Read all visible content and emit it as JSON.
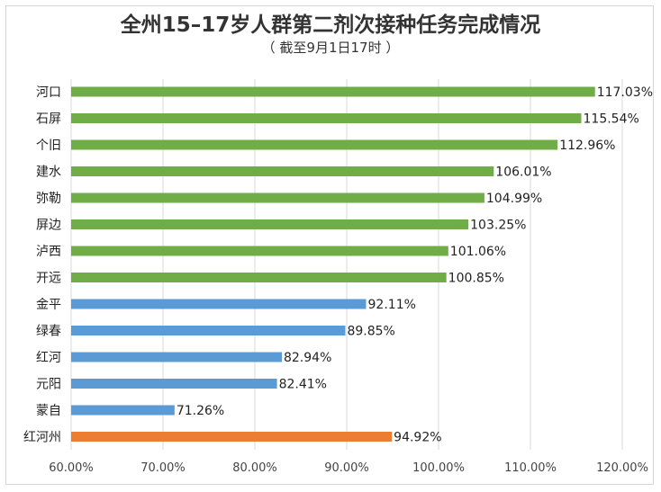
{
  "chart_data": {
    "type": "bar",
    "orientation": "horizontal",
    "title": "全州15–17岁人群第二剂次接种任务完成情况",
    "subtitle": "（ 截至9月1日17时 ）",
    "categories": [
      "河口",
      "石屏",
      "个旧",
      "建水",
      "弥勒",
      "屏边",
      "泸西",
      "开远",
      "金平",
      "绿春",
      "红河",
      "元阳",
      "蒙自",
      "红河州"
    ],
    "values": [
      117.03,
      115.54,
      112.96,
      106.01,
      104.99,
      103.25,
      101.06,
      100.85,
      92.11,
      89.85,
      82.94,
      82.41,
      71.26,
      94.92
    ],
    "value_labels": [
      "117.03%",
      "115.54%",
      "112.96%",
      "106.01%",
      "104.99%",
      "103.25%",
      "101.06%",
      "100.85%",
      "92.11%",
      "89.85%",
      "82.94%",
      "82.41%",
      "71.26%",
      "94.92%"
    ],
    "bar_colors": [
      "#70ad47",
      "#70ad47",
      "#70ad47",
      "#70ad47",
      "#70ad47",
      "#70ad47",
      "#70ad47",
      "#70ad47",
      "#5b9bd5",
      "#5b9bd5",
      "#5b9bd5",
      "#5b9bd5",
      "#5b9bd5",
      "#ed7d31"
    ],
    "xlim": [
      60,
      120
    ],
    "xticks": [
      60,
      70,
      80,
      90,
      100,
      110,
      120
    ],
    "xtick_labels": [
      "60.00%",
      "70.00%",
      "80.00%",
      "90.00%",
      "100.00%",
      "110.00%",
      "120.00%"
    ],
    "grid": true,
    "legend": "none"
  },
  "colors": {
    "gridline": "#d9d9d9",
    "axis": "#bfbfbf"
  }
}
